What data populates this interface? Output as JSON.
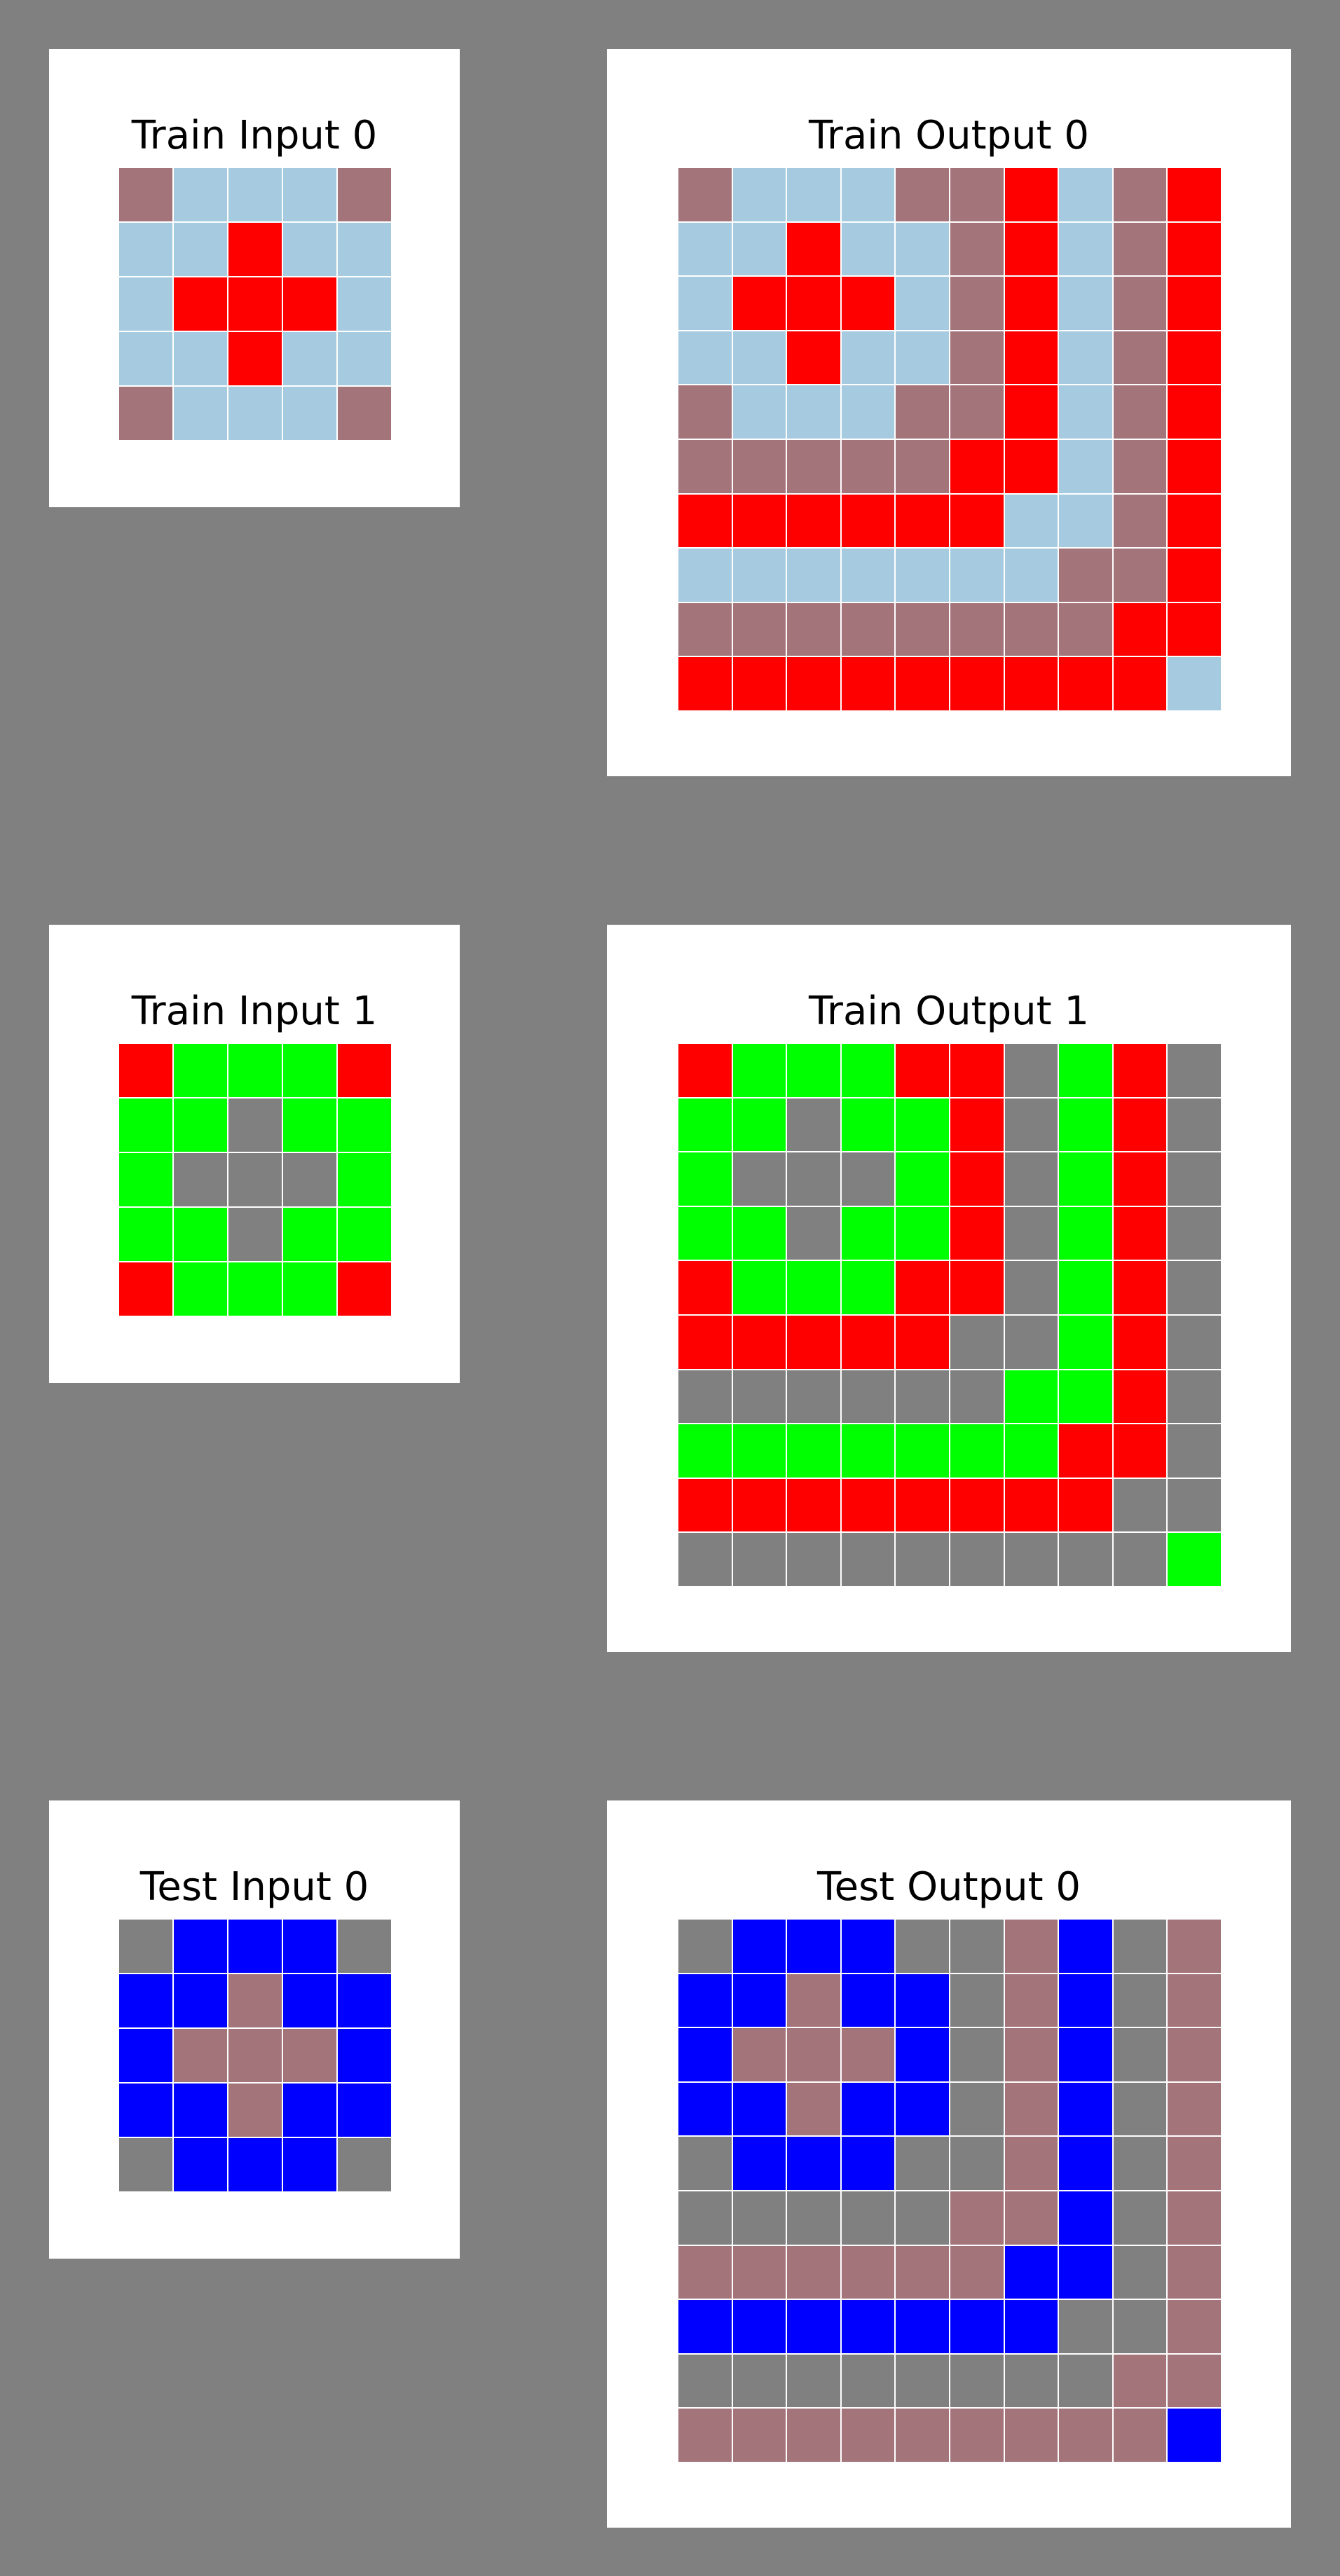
{
  "colors": {
    "0": "#000000",
    "1": "#0000ff",
    "2": "#ff0000",
    "3": "#00ff00",
    "4": "#ffff00",
    "5": "#808080",
    "6": "#a3747a",
    "7": "#ff8c00",
    "8": "#a6cbe0",
    "9": "#800000"
  },
  "panels": [
    {
      "id": "train-input-0",
      "title": "Train Input 0",
      "grid": [
        [
          6,
          8,
          8,
          8,
          6
        ],
        [
          8,
          8,
          2,
          8,
          8
        ],
        [
          8,
          2,
          2,
          2,
          8
        ],
        [
          8,
          8,
          2,
          8,
          8
        ],
        [
          6,
          8,
          8,
          8,
          6
        ]
      ]
    },
    {
      "id": "train-output-0",
      "title": "Train Output 0",
      "grid": [
        [
          6,
          8,
          8,
          8,
          6,
          6,
          2,
          8,
          6,
          2
        ],
        [
          8,
          8,
          2,
          8,
          8,
          6,
          2,
          8,
          6,
          2
        ],
        [
          8,
          2,
          2,
          2,
          8,
          6,
          2,
          8,
          6,
          2
        ],
        [
          8,
          8,
          2,
          8,
          8,
          6,
          2,
          8,
          6,
          2
        ],
        [
          6,
          8,
          8,
          8,
          6,
          6,
          2,
          8,
          6,
          2
        ],
        [
          6,
          6,
          6,
          6,
          6,
          2,
          2,
          8,
          6,
          2
        ],
        [
          2,
          2,
          2,
          2,
          2,
          2,
          8,
          8,
          6,
          2
        ],
        [
          8,
          8,
          8,
          8,
          8,
          8,
          8,
          6,
          6,
          2
        ],
        [
          6,
          6,
          6,
          6,
          6,
          6,
          6,
          6,
          2,
          2
        ],
        [
          2,
          2,
          2,
          2,
          2,
          2,
          2,
          2,
          2,
          8
        ]
      ]
    },
    {
      "id": "train-input-1",
      "title": "Train Input 1",
      "grid": [
        [
          2,
          3,
          3,
          3,
          2
        ],
        [
          3,
          3,
          5,
          3,
          3
        ],
        [
          3,
          5,
          5,
          5,
          3
        ],
        [
          3,
          3,
          5,
          3,
          3
        ],
        [
          2,
          3,
          3,
          3,
          2
        ]
      ]
    },
    {
      "id": "train-output-1",
      "title": "Train Output 1",
      "grid": [
        [
          2,
          3,
          3,
          3,
          2,
          2,
          5,
          3,
          2,
          5
        ],
        [
          3,
          3,
          5,
          3,
          3,
          2,
          5,
          3,
          2,
          5
        ],
        [
          3,
          5,
          5,
          5,
          3,
          2,
          5,
          3,
          2,
          5
        ],
        [
          3,
          3,
          5,
          3,
          3,
          2,
          5,
          3,
          2,
          5
        ],
        [
          2,
          3,
          3,
          3,
          2,
          2,
          5,
          3,
          2,
          5
        ],
        [
          2,
          2,
          2,
          2,
          2,
          5,
          5,
          3,
          2,
          5
        ],
        [
          5,
          5,
          5,
          5,
          5,
          5,
          3,
          3,
          2,
          5
        ],
        [
          3,
          3,
          3,
          3,
          3,
          3,
          3,
          2,
          2,
          5
        ],
        [
          2,
          2,
          2,
          2,
          2,
          2,
          2,
          2,
          5,
          5
        ],
        [
          5,
          5,
          5,
          5,
          5,
          5,
          5,
          5,
          5,
          3
        ]
      ]
    },
    {
      "id": "test-input-0",
      "title": "Test Input 0",
      "grid": [
        [
          5,
          1,
          1,
          1,
          5
        ],
        [
          1,
          1,
          6,
          1,
          1
        ],
        [
          1,
          6,
          6,
          6,
          1
        ],
        [
          1,
          1,
          6,
          1,
          1
        ],
        [
          5,
          1,
          1,
          1,
          5
        ]
      ]
    },
    {
      "id": "test-output-0",
      "title": "Test Output 0",
      "grid": [
        [
          5,
          1,
          1,
          1,
          5,
          5,
          6,
          1,
          5,
          6
        ],
        [
          1,
          1,
          6,
          1,
          1,
          5,
          6,
          1,
          5,
          6
        ],
        [
          1,
          6,
          6,
          6,
          1,
          5,
          6,
          1,
          5,
          6
        ],
        [
          1,
          1,
          6,
          1,
          1,
          5,
          6,
          1,
          5,
          6
        ],
        [
          5,
          1,
          1,
          1,
          5,
          5,
          6,
          1,
          5,
          6
        ],
        [
          5,
          5,
          5,
          5,
          5,
          6,
          6,
          1,
          5,
          6
        ],
        [
          6,
          6,
          6,
          6,
          6,
          6,
          1,
          1,
          5,
          6
        ],
        [
          1,
          1,
          1,
          1,
          1,
          1,
          1,
          5,
          5,
          6
        ],
        [
          5,
          5,
          5,
          5,
          5,
          5,
          5,
          5,
          6,
          6
        ],
        [
          6,
          6,
          6,
          6,
          6,
          6,
          6,
          6,
          6,
          1
        ]
      ]
    }
  ]
}
